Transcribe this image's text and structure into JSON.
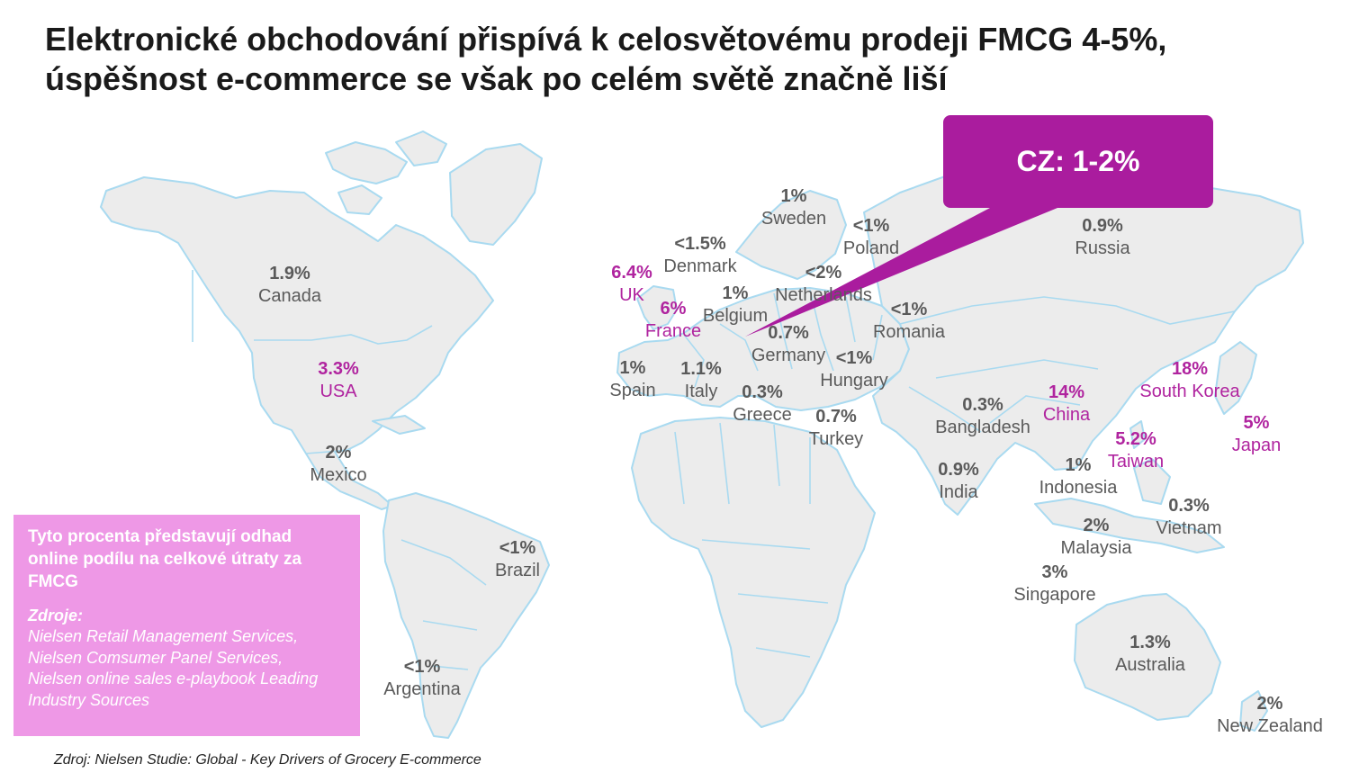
{
  "title": {
    "line1": "Elektronické obchodování přispívá k celosvětovému prodeji FMCG 4-5%,",
    "line2": "úspěšnost e-commerce se však po celém světě značně liší"
  },
  "colors": {
    "highlight": "#b0249f",
    "callout": "#aa1c9e",
    "note_bg": "#ee98e6",
    "land": "#ececec",
    "borders": "#a9daf0"
  },
  "callout": {
    "text": "CZ: 1-2%"
  },
  "labels": [
    {
      "country": "Canada",
      "value": "1.9%",
      "highlight": false
    },
    {
      "country": "USA",
      "value": "3.3%",
      "highlight": true
    },
    {
      "country": "Mexico",
      "value": "2%",
      "highlight": false
    },
    {
      "country": "Brazil",
      "value": "<1%",
      "highlight": false
    },
    {
      "country": "Argentina",
      "value": "<1%",
      "highlight": false
    },
    {
      "country": "UK",
      "value": "6.4%",
      "highlight": true
    },
    {
      "country": "France",
      "value": "6%",
      "highlight": true
    },
    {
      "country": "Spain",
      "value": "1%",
      "highlight": false
    },
    {
      "country": "Italy",
      "value": "1.1%",
      "highlight": false
    },
    {
      "country": "Denmark",
      "value": "<1.5%",
      "highlight": false
    },
    {
      "country": "Belgium",
      "value": "1%",
      "highlight": false
    },
    {
      "country": "Sweden",
      "value": "1%",
      "highlight": false
    },
    {
      "country": "Poland",
      "value": "<1%",
      "highlight": false
    },
    {
      "country": "Netherlands",
      "value": "<2%",
      "highlight": false
    },
    {
      "country": "Germany",
      "value": "0.7%",
      "highlight": false
    },
    {
      "country": "Greece",
      "value": "0.3%",
      "highlight": false
    },
    {
      "country": "Hungary",
      "value": "<1%",
      "highlight": false
    },
    {
      "country": "Romania",
      "value": "<1%",
      "highlight": false
    },
    {
      "country": "Turkey",
      "value": "0.7%",
      "highlight": false
    },
    {
      "country": "Russia",
      "value": "0.9%",
      "highlight": false
    },
    {
      "country": "Bangladesh",
      "value": "0.3%",
      "highlight": false
    },
    {
      "country": "India",
      "value": "0.9%",
      "highlight": false
    },
    {
      "country": "China",
      "value": "14%",
      "highlight": true
    },
    {
      "country": "South Korea",
      "value": "18%",
      "highlight": true
    },
    {
      "country": "Japan",
      "value": "5%",
      "highlight": true
    },
    {
      "country": "Taiwan",
      "value": "5.2%",
      "highlight": true
    },
    {
      "country": "Indonesia",
      "value": "1%",
      "highlight": false
    },
    {
      "country": "Vietnam",
      "value": "0.3%",
      "highlight": false
    },
    {
      "country": "Malaysia",
      "value": "2%",
      "highlight": false
    },
    {
      "country": "Singapore",
      "value": "3%",
      "highlight": false
    },
    {
      "country": "Australia",
      "value": "1.3%",
      "highlight": false
    },
    {
      "country": "New Zealand",
      "value": "2%",
      "highlight": false
    }
  ],
  "note": {
    "heading": "Tyto procenta představují odhad online podílu na celkové útraty za FMCG",
    "sources_title": "Zdroje:",
    "sources": [
      "Nielsen Retail Management Services,",
      "Nielsen Comsumer Panel Services,",
      "Nielsen online sales e-playbook Leading Industry Sources"
    ]
  },
  "footer": "Zdroj: Nielsen  Studie: Global - Key Drivers of Grocery E-commerce"
}
